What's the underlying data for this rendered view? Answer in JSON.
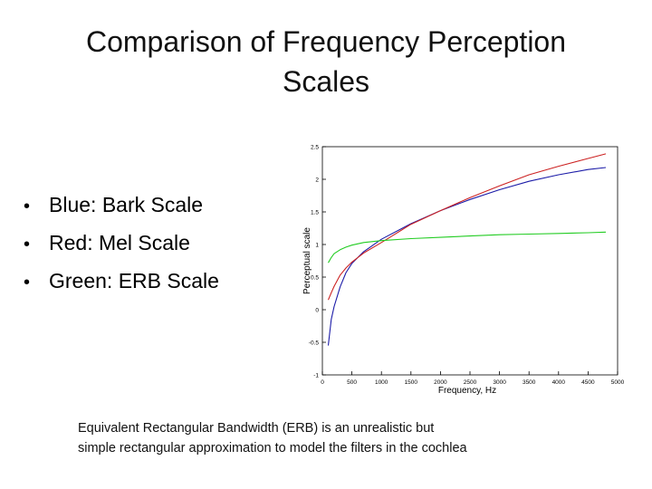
{
  "slide": {
    "title_line1": "Comparison of Frequency Perception",
    "title_line2": "Scales",
    "bullets": [
      {
        "text": "Blue: Bark Scale"
      },
      {
        "text": "Red: Mel Scale"
      },
      {
        "text": "Green: ERB Scale"
      }
    ],
    "caption_line1": "Equivalent Rectangular Bandwidth (ERB) is an unrealistic but",
    "caption_line2": "simple rectangular approximation to model the filters in the cochlea"
  },
  "chart_data": {
    "type": "line",
    "title": "",
    "xlabel": "Frequency, Hz",
    "ylabel": "Perceptual scale",
    "xlim": [
      0,
      5000
    ],
    "ylim": [
      -1,
      2.5
    ],
    "xticks": [
      "0",
      "500",
      "1000",
      "1500",
      "2000",
      "2500",
      "3000",
      "3500",
      "4000",
      "4500",
      "5000"
    ],
    "yticks": [
      "-1",
      "-0.5",
      "0",
      "0.5",
      "1",
      "1.5",
      "2",
      "2.5"
    ],
    "grid": false,
    "x": [
      100,
      150,
      200,
      300,
      400,
      500,
      700,
      1000,
      1500,
      2000,
      2500,
      3000,
      3500,
      4000,
      4500,
      4800
    ],
    "series": [
      {
        "color": "#1c1ca8",
        "values": [
          -0.55,
          -0.15,
          0.05,
          0.35,
          0.57,
          0.71,
          0.89,
          1.08,
          1.32,
          1.52,
          1.69,
          1.84,
          1.97,
          2.07,
          2.15,
          2.18
        ]
      },
      {
        "color": "#cc2222",
        "values": [
          0.15,
          0.26,
          0.36,
          0.53,
          0.64,
          0.73,
          0.87,
          1.03,
          1.31,
          1.52,
          1.72,
          1.9,
          2.07,
          2.2,
          2.32,
          2.39
        ]
      },
      {
        "color": "#22cc22",
        "values": [
          0.72,
          0.8,
          0.86,
          0.92,
          0.96,
          0.99,
          1.03,
          1.06,
          1.09,
          1.11,
          1.13,
          1.15,
          1.16,
          1.17,
          1.18,
          1.19
        ]
      }
    ]
  }
}
